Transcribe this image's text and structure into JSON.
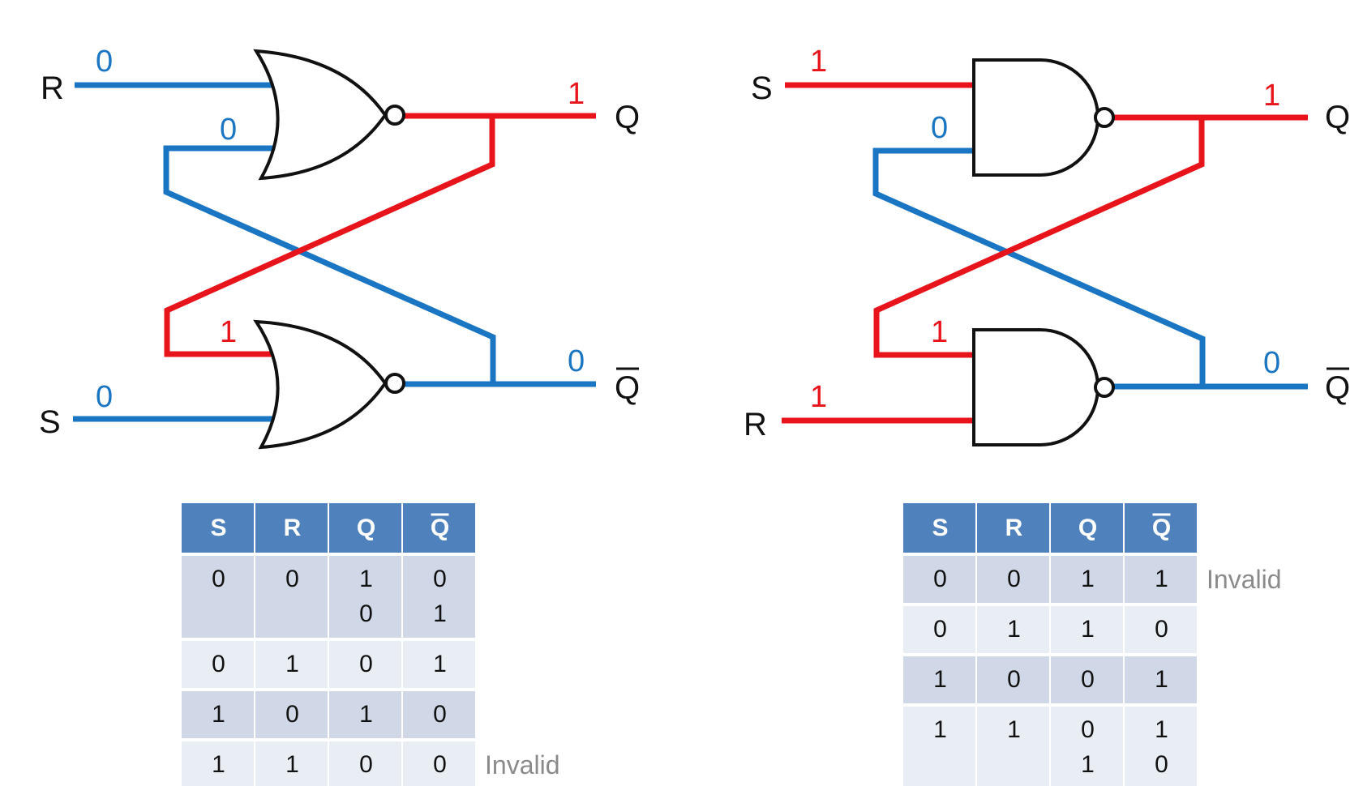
{
  "colors": {
    "high": "#e8141b",
    "low": "#1a75c2",
    "gate": "#111111",
    "table_header": "#4f81bd",
    "row_dark": "#d0d8e8",
    "row_light": "#e9edf4",
    "note": "#8a8a8a"
  },
  "nor_latch": {
    "gate_type": "NOR",
    "inputs": {
      "top": {
        "pin": "R",
        "value": "0"
      },
      "bottom": {
        "pin": "S",
        "value": "0"
      }
    },
    "feedback": {
      "top": "0",
      "bottom": "1"
    },
    "outputs": {
      "top": {
        "pin": "Q",
        "value": "1"
      },
      "bottom": {
        "pin": "Q",
        "overbar": true,
        "value": "0"
      }
    },
    "table": {
      "headers": [
        "S",
        "R",
        "Q",
        "Q"
      ],
      "overbar_header_index": 3,
      "rows": [
        {
          "lines": [
            [
              "0",
              "0",
              "1",
              "0"
            ],
            [
              "",
              "",
              "0",
              "1"
            ]
          ],
          "note": ""
        },
        {
          "lines": [
            [
              "0",
              "1",
              "0",
              "1"
            ]
          ],
          "note": ""
        },
        {
          "lines": [
            [
              "1",
              "0",
              "1",
              "0"
            ]
          ],
          "note": ""
        },
        {
          "lines": [
            [
              "1",
              "1",
              "0",
              "0"
            ]
          ],
          "note": "Invalid"
        }
      ]
    }
  },
  "nand_latch": {
    "gate_type": "NAND",
    "inputs": {
      "top": {
        "pin": "S",
        "value": "1"
      },
      "bottom": {
        "pin": "R",
        "value": "1"
      }
    },
    "feedback": {
      "top": "0",
      "bottom": "1"
    },
    "outputs": {
      "top": {
        "pin": "Q",
        "value": "1"
      },
      "bottom": {
        "pin": "Q",
        "overbar": true,
        "value": "0"
      }
    },
    "table": {
      "headers": [
        "S",
        "R",
        "Q",
        "Q"
      ],
      "overbar_header_index": 3,
      "rows": [
        {
          "lines": [
            [
              "0",
              "0",
              "1",
              "1"
            ]
          ],
          "note": "Invalid"
        },
        {
          "lines": [
            [
              "0",
              "1",
              "1",
              "0"
            ]
          ],
          "note": ""
        },
        {
          "lines": [
            [
              "1",
              "0",
              "0",
              "1"
            ]
          ],
          "note": ""
        },
        {
          "lines": [
            [
              "1",
              "1",
              "0",
              "1"
            ],
            [
              "",
              "",
              "1",
              "0"
            ]
          ],
          "note": ""
        }
      ]
    }
  }
}
